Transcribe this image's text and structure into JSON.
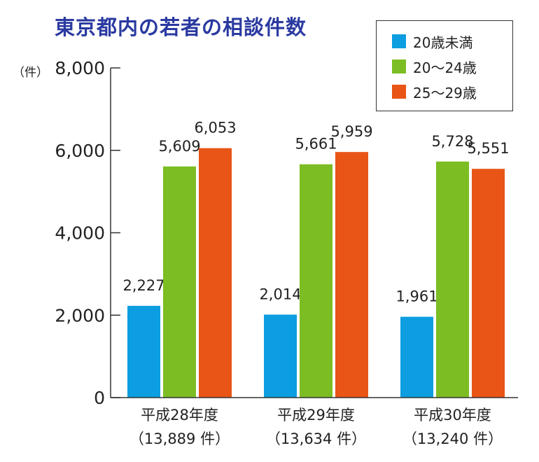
{
  "chart_data": {
    "type": "bar",
    "title": "東京都内の若者の相談件数",
    "unit_label": "（件）",
    "categories": [
      "平成28年度",
      "平成29年度",
      "平成30年度"
    ],
    "category_totals": [
      "（13,889 件）",
      "（13,634 件）",
      "（13,240 件）"
    ],
    "series": [
      {
        "name": "20歳未満",
        "color": "#0c9ee0",
        "values": [
          2227,
          2014,
          1961
        ]
      },
      {
        "name": "20～24歳",
        "color": "#7cbd23",
        "values": [
          5609,
          5661,
          5728
        ]
      },
      {
        "name": "25～29歳",
        "color": "#e85516",
        "values": [
          6053,
          5959,
          5551
        ]
      }
    ],
    "ylim": [
      0,
      8000
    ],
    "yticks": [
      0,
      2000,
      4000,
      6000,
      8000
    ],
    "ytick_labels": [
      "0",
      "2,000",
      "4,000",
      "6,000",
      "8,000"
    ],
    "data_labels": [
      [
        "2,227",
        "2,014",
        "1,961"
      ],
      [
        "5,609",
        "5,661",
        "5,728"
      ],
      [
        "6,053",
        "5,959",
        "5,551"
      ]
    ],
    "legend_position": "top-right",
    "grid": false
  }
}
